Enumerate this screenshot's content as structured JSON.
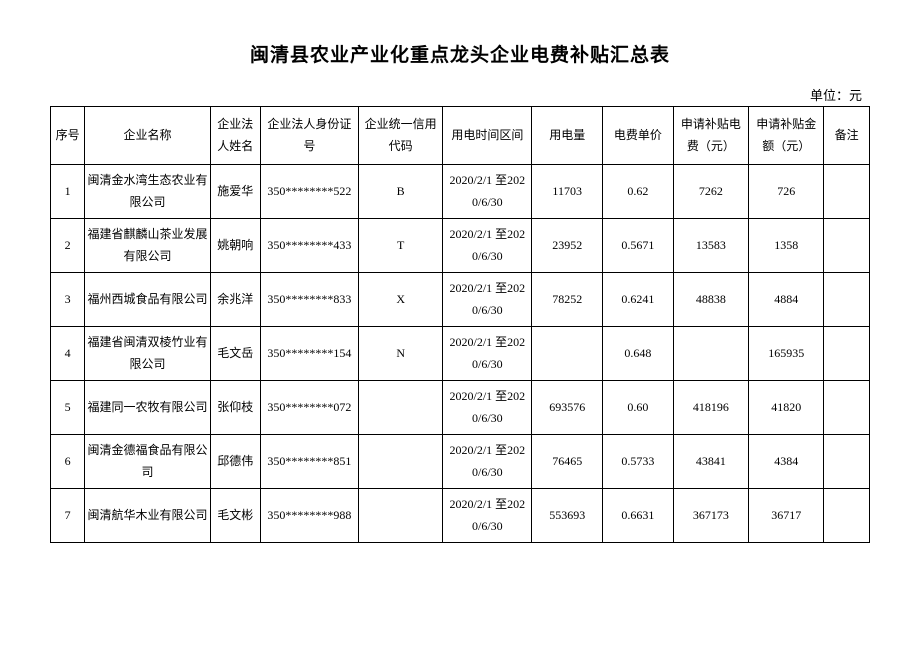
{
  "title": "闽清县农业产业化重点龙头企业电费补贴汇总表",
  "unit": "单位：元",
  "headers": {
    "idx": "序号",
    "name": "企业名称",
    "legal": "企业法人姓名",
    "id": "企业法人身份证号",
    "code": "企业统一信用代码",
    "period": "用电时间区间",
    "usage": "用电量",
    "price": "电费单价",
    "fee": "申请补贴电费（元）",
    "amt": "申请补贴金额（元）",
    "remark": "备注"
  },
  "rows": [
    {
      "idx": "1",
      "name": "闽清金水湾生态农业有限公司",
      "legal": "施爱华",
      "id": "350********522",
      "code": "B",
      "period": "2020/2/1 至2020/6/30",
      "usage": "11703",
      "price": "0.62",
      "fee": "7262",
      "amt": "726",
      "remark": ""
    },
    {
      "idx": "2",
      "name": "福建省麒麟山茶业发展有限公司",
      "legal": "姚朝响",
      "id": "350********433",
      "code": "T",
      "period": "2020/2/1 至2020/6/30",
      "usage": "23952",
      "price": "0.5671",
      "fee": "13583",
      "amt": "1358",
      "remark": ""
    },
    {
      "idx": "3",
      "name": "福州西城食品有限公司",
      "legal": "余兆洋",
      "id": "350********833",
      "code": "X",
      "period": "2020/2/1 至2020/6/30",
      "usage": "78252",
      "price": "0.6241",
      "fee": "48838",
      "amt": "4884",
      "remark": ""
    },
    {
      "idx": "4",
      "name": "福建省闽清双棱竹业有限公司",
      "legal": "毛文岳",
      "id": "350********154",
      "code": "N",
      "period": "2020/2/1 至2020/6/30",
      "usage": "",
      "price": "0.648",
      "fee": "",
      "amt": "165935",
      "remark": ""
    },
    {
      "idx": "5",
      "name": "福建同一农牧有限公司",
      "legal": "张仰枝",
      "id": "350********072",
      "code": "",
      "period": "2020/2/1 至2020/6/30",
      "usage": "693576",
      "price": "0.60",
      "fee": "418196",
      "amt": "41820",
      "remark": ""
    },
    {
      "idx": "6",
      "name": "闽清金德福食品有限公司",
      "legal": "邱德伟",
      "id": "350********851",
      "code": "",
      "period": "2020/2/1 至2020/6/30",
      "usage": "76465",
      "price": "0.5733",
      "fee": "43841",
      "amt": "4384",
      "remark": ""
    },
    {
      "idx": "7",
      "name": "闽清航华木业有限公司",
      "legal": "毛文彬",
      "id": "350********988",
      "code": "",
      "period": "2020/2/1 至2020/6/30",
      "usage": "553693",
      "price": "0.6631",
      "fee": "367173",
      "amt": "36717",
      "remark": ""
    }
  ]
}
